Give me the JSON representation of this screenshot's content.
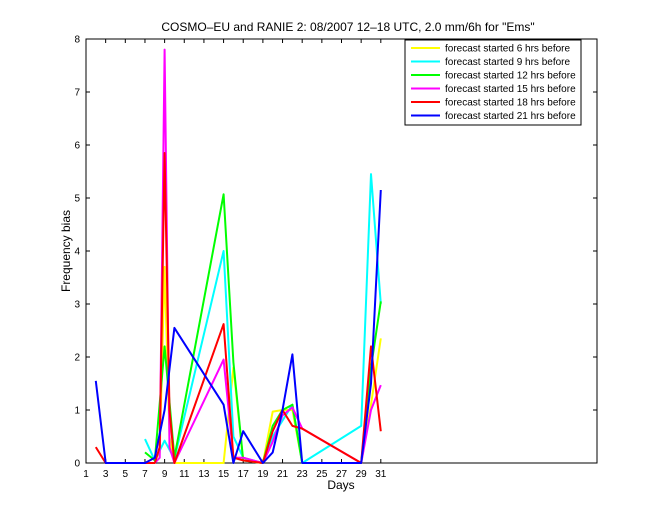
{
  "chart_data": {
    "type": "line",
    "title": "COSMO–EU and RANIE 2: 08/2007 12–18 UTC, 2.0 mm/6h for \"Ems\"",
    "xlabel": "Days",
    "ylabel": "Frequency bias",
    "xlim": [
      1,
      53
    ],
    "ylim": [
      0,
      8
    ],
    "xticks": [
      1,
      3,
      5,
      7,
      9,
      11,
      13,
      15,
      17,
      19,
      21,
      23,
      25,
      27,
      29,
      31
    ],
    "yticks": [
      0,
      1,
      2,
      3,
      4,
      5,
      6,
      7,
      8
    ],
    "legend_position": "top-right",
    "grid": false,
    "series": [
      {
        "name": "forecast started 6 hrs before",
        "color": "#ffff00",
        "points": [
          [
            8,
            0.05
          ],
          [
            8.5,
            0.2
          ],
          [
            9,
            3.7
          ],
          [
            9.5,
            0.5
          ],
          [
            10,
            0
          ],
          [
            15,
            0
          ],
          [
            16,
            1.8
          ],
          [
            17,
            0.05
          ],
          [
            19,
            0
          ],
          [
            20,
            0.97
          ],
          [
            21,
            1.0
          ],
          [
            22,
            1.0
          ],
          [
            23,
            0
          ],
          [
            29,
            0
          ],
          [
            30,
            1.1
          ],
          [
            31,
            2.35
          ]
        ]
      },
      {
        "name": "forecast started 9 hrs before",
        "color": "#00ffff",
        "points": [
          [
            7,
            0.45
          ],
          [
            8,
            0.05
          ],
          [
            9,
            0.42
          ],
          [
            10,
            0.08
          ],
          [
            15,
            4.0
          ],
          [
            16,
            0.5
          ],
          [
            17,
            0.1
          ],
          [
            19,
            0
          ],
          [
            20,
            0.5
          ],
          [
            21,
            0.8
          ],
          [
            22,
            1.1
          ],
          [
            23,
            0
          ],
          [
            29,
            0.7
          ],
          [
            30,
            5.45
          ],
          [
            31,
            3.0
          ]
        ]
      },
      {
        "name": "forecast started 12 hrs before",
        "color": "#00ff00",
        "points": [
          [
            7,
            0.2
          ],
          [
            8,
            0.05
          ],
          [
            9,
            2.2
          ],
          [
            10,
            0.1
          ],
          [
            15,
            5.07
          ],
          [
            16,
            1.9
          ],
          [
            17,
            0.05
          ],
          [
            19,
            0
          ],
          [
            20,
            0.7
          ],
          [
            21,
            1.0
          ],
          [
            22,
            1.1
          ],
          [
            23,
            0
          ],
          [
            29,
            0
          ],
          [
            30,
            1.8
          ],
          [
            31,
            3.05
          ]
        ]
      },
      {
        "name": "forecast started 15 hrs before",
        "color": "#ff00ff",
        "points": [
          [
            8,
            0
          ],
          [
            8.5,
            0.1
          ],
          [
            9,
            7.8
          ],
          [
            9.5,
            0.3
          ],
          [
            10,
            0
          ],
          [
            15,
            1.95
          ],
          [
            16,
            0.1
          ],
          [
            17,
            0.1
          ],
          [
            19,
            0
          ],
          [
            20,
            0.4
          ],
          [
            21,
            0.9
          ],
          [
            22,
            1.05
          ],
          [
            23,
            0.65
          ],
          [
            29,
            0
          ],
          [
            30,
            1.0
          ],
          [
            31,
            1.47
          ]
        ]
      },
      {
        "name": "forecast started 18 hrs before",
        "color": "#ff0000",
        "points": [
          [
            2,
            0.3
          ],
          [
            3,
            0
          ],
          [
            8,
            0
          ],
          [
            8.5,
            0.3
          ],
          [
            9,
            5.85
          ],
          [
            9.5,
            1.0
          ],
          [
            10,
            0
          ],
          [
            15,
            2.62
          ],
          [
            16,
            0.1
          ],
          [
            17,
            0.05
          ],
          [
            19,
            0
          ],
          [
            20,
            0.6
          ],
          [
            21,
            1.0
          ],
          [
            22,
            0.7
          ],
          [
            23,
            0.65
          ],
          [
            29,
            0
          ],
          [
            30,
            2.2
          ],
          [
            31,
            0.6
          ]
        ]
      },
      {
        "name": "forecast started 21 hrs before",
        "color": "#0000ff",
        "points": [
          [
            2,
            1.55
          ],
          [
            3,
            0
          ],
          [
            7,
            0
          ],
          [
            8,
            0.1
          ],
          [
            9,
            1.0
          ],
          [
            10,
            2.55
          ],
          [
            15,
            1.1
          ],
          [
            16,
            0
          ],
          [
            17,
            0.6
          ],
          [
            19,
            0
          ],
          [
            20,
            0.2
          ],
          [
            21,
            1.0
          ],
          [
            22,
            2.05
          ],
          [
            23,
            0
          ],
          [
            29,
            0
          ],
          [
            30,
            1.5
          ],
          [
            31,
            5.15
          ]
        ]
      }
    ]
  }
}
